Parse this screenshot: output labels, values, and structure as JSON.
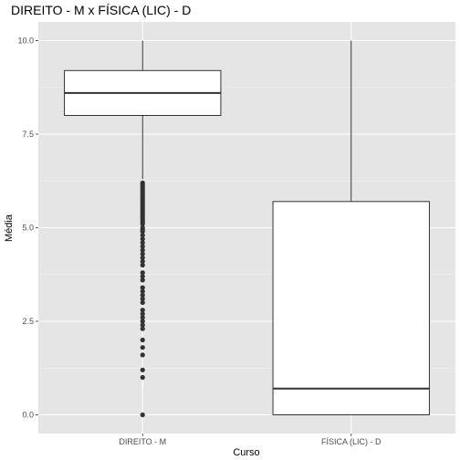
{
  "chart_data": {
    "type": "boxplot",
    "title": "DIREITO - M x FÍSICA (LIC) - D",
    "xlabel": "Curso",
    "ylabel": "Média",
    "ylim": [
      -0.5,
      10.5
    ],
    "y_ticks": [
      0.0,
      2.5,
      5.0,
      7.5,
      10.0
    ],
    "y_tick_labels": [
      "0.0",
      "2.5",
      "5.0",
      "7.5",
      "10.0"
    ],
    "categories": [
      "DIREITO - M",
      "FÍSICA (LIC) - D"
    ],
    "grid": true,
    "background": "#e5e5e5",
    "box_fill": "#ffffff",
    "line_color": "#333333",
    "boxes": [
      {
        "category": "DIREITO - M",
        "whisker_low": 6.3,
        "q1": 8.0,
        "median": 8.6,
        "q3": 9.2,
        "whisker_high": 10.0,
        "outliers": [
          6.2,
          6.15,
          6.1,
          6.05,
          6.0,
          5.95,
          5.9,
          5.85,
          5.8,
          5.75,
          5.7,
          5.65,
          5.6,
          5.55,
          5.5,
          5.45,
          5.4,
          5.35,
          5.3,
          5.25,
          5.2,
          5.15,
          5.1,
          5.0,
          4.95,
          4.9,
          4.8,
          4.7,
          4.6,
          4.5,
          4.4,
          4.3,
          4.2,
          4.1,
          4.0,
          3.8,
          3.7,
          3.6,
          3.4,
          3.3,
          3.2,
          3.1,
          3.0,
          2.8,
          2.7,
          2.6,
          2.5,
          2.4,
          2.3,
          2.0,
          1.8,
          1.6,
          1.2,
          1.0,
          0.0
        ]
      },
      {
        "category": "FÍSICA (LIC) - D",
        "whisker_low": 0.0,
        "q1": 0.0,
        "median": 0.7,
        "q3": 5.7,
        "whisker_high": 10.0,
        "outliers": []
      }
    ]
  }
}
